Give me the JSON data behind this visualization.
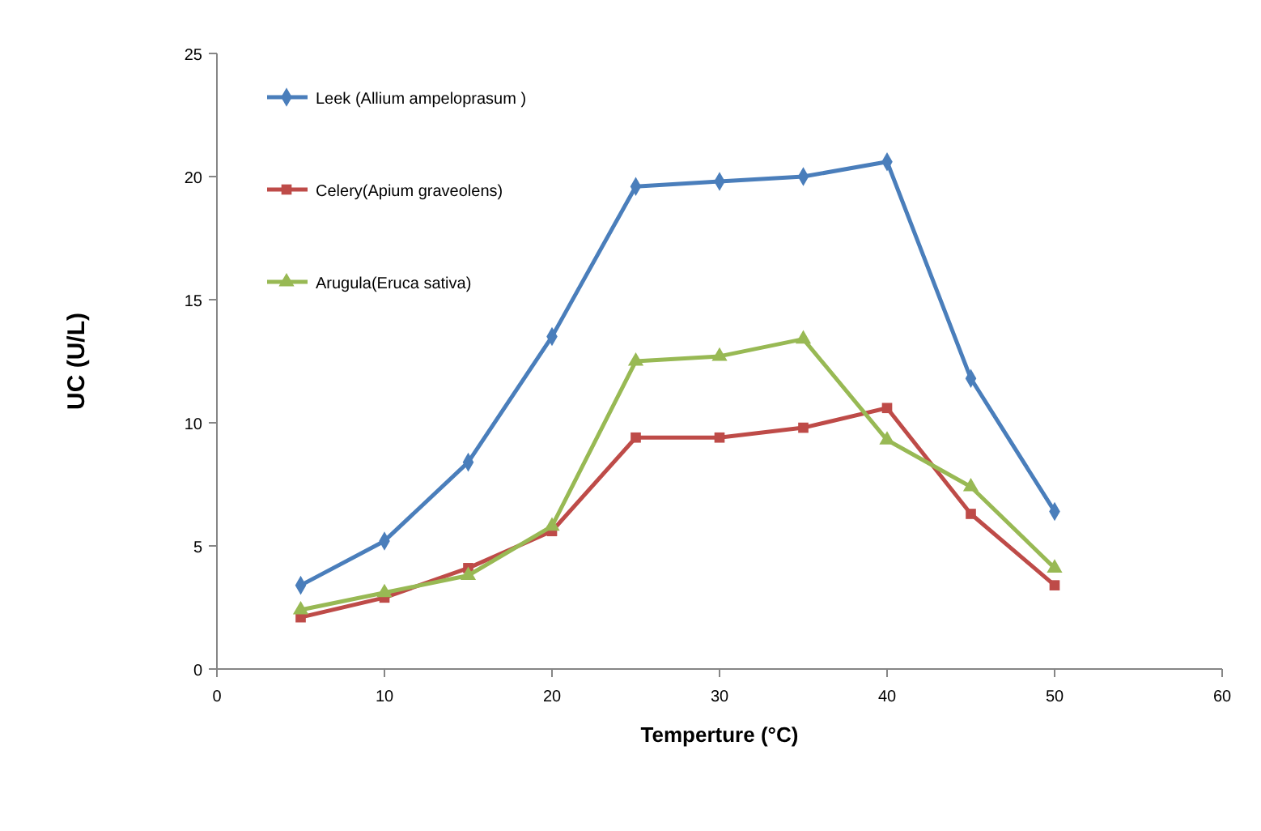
{
  "chart_data": {
    "type": "line",
    "xlabel": "Temperture (°C)",
    "ylabel": "UC (U/L)",
    "x": [
      5,
      10,
      15,
      20,
      25,
      30,
      35,
      40,
      45,
      50
    ],
    "series": [
      {
        "name": "Leek (Allium ampeloprasum )",
        "color": "#4a7ebb",
        "marker": "diamond",
        "values": [
          3.4,
          5.2,
          8.4,
          13.5,
          19.6,
          19.8,
          20,
          20.6,
          11.8,
          6.4
        ]
      },
      {
        "name": "Celery(Apium graveolens)",
        "color": "#be4b48",
        "marker": "square",
        "values": [
          2.1,
          2.9,
          4.1,
          5.6,
          9.4,
          9.4,
          9.8,
          10.6,
          6.3,
          3.4
        ]
      },
      {
        "name": "Arugula(Eruca sativa)",
        "color": "#98b954",
        "marker": "triangle",
        "values": [
          2.4,
          3.1,
          3.8,
          5.8,
          12.5,
          12.7,
          13.4,
          9.3,
          7.4,
          4.1
        ]
      }
    ],
    "xlim": [
      0,
      60
    ],
    "xticks": [
      0,
      10,
      20,
      30,
      40,
      50,
      60
    ],
    "ylim": [
      0,
      25
    ],
    "yticks": [
      0,
      5,
      10,
      15,
      20,
      25
    ],
    "grid": false,
    "legend": "top left",
    "line_style": "solid"
  }
}
